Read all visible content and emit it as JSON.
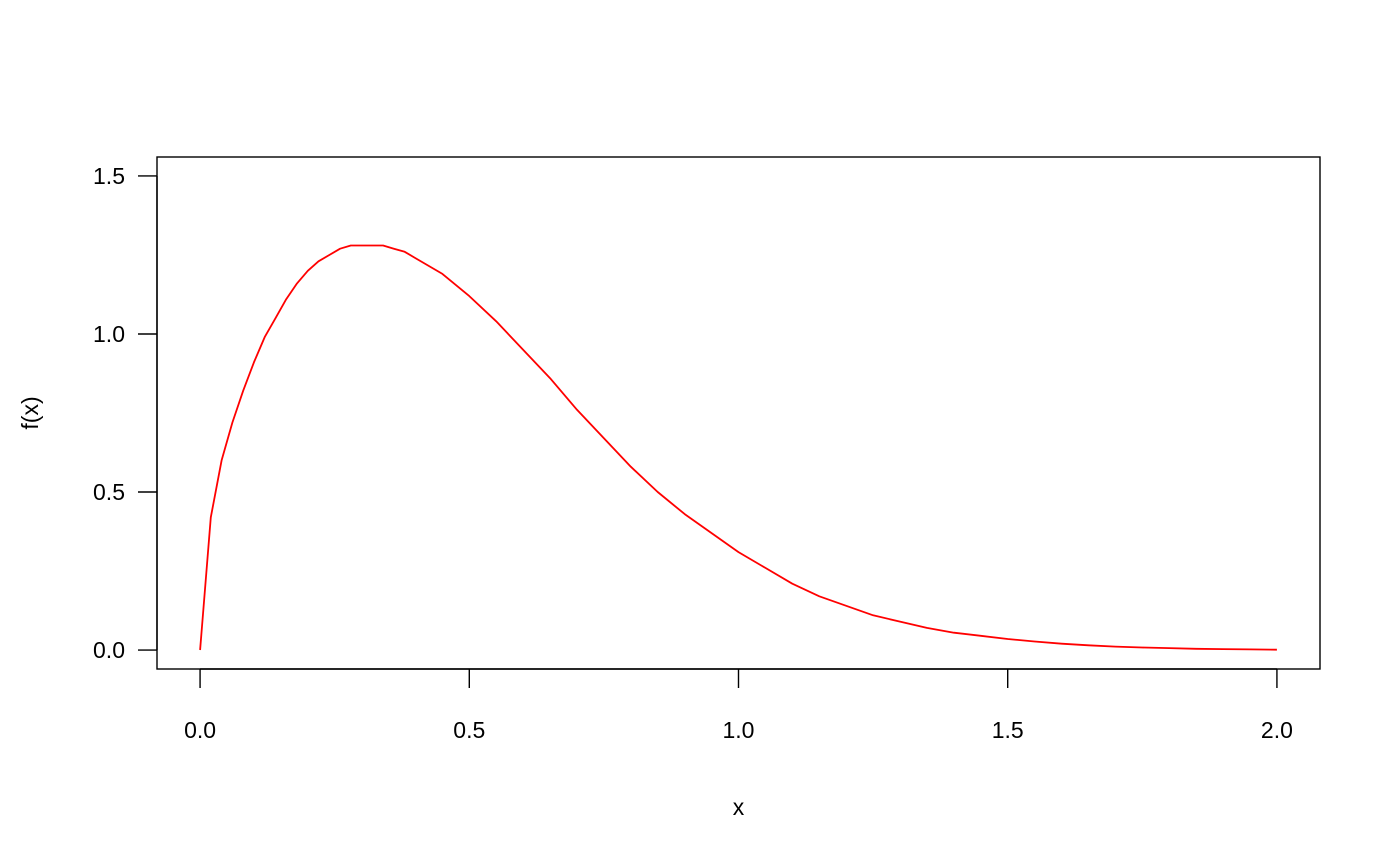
{
  "chart_data": {
    "type": "line",
    "title": "",
    "xlabel": "x",
    "ylabel": "f(x)",
    "xlim": [
      -0.08,
      2.08
    ],
    "ylim": [
      -0.06,
      1.56
    ],
    "xticks": [
      0.0,
      0.5,
      1.0,
      1.5,
      2.0
    ],
    "xtick_labels": [
      "0.0",
      "0.5",
      "1.0",
      "1.5",
      "2.0"
    ],
    "yticks": [
      0.0,
      0.5,
      1.0,
      1.5
    ],
    "ytick_labels": [
      "0.0",
      "0.5",
      "1.0",
      "1.5"
    ],
    "grid": false,
    "legend": "none",
    "series": [
      {
        "color": "#ff0000",
        "x": [
          0.0,
          0.02,
          0.04,
          0.06,
          0.08,
          0.1,
          0.12,
          0.14,
          0.16,
          0.18,
          0.2,
          0.22,
          0.24,
          0.26,
          0.28,
          0.3,
          0.32,
          0.34,
          0.36,
          0.38,
          0.4,
          0.45,
          0.5,
          0.55,
          0.6,
          0.65,
          0.7,
          0.75,
          0.8,
          0.85,
          0.9,
          0.95,
          1.0,
          1.05,
          1.1,
          1.15,
          1.2,
          1.25,
          1.3,
          1.35,
          1.4,
          1.45,
          1.5,
          1.55,
          1.6,
          1.65,
          1.7,
          1.75,
          1.8,
          1.85,
          1.9,
          1.95,
          2.0
        ],
        "y": [
          0.0,
          0.42,
          0.6,
          0.72,
          0.82,
          0.91,
          0.99,
          1.05,
          1.11,
          1.16,
          1.2,
          1.23,
          1.25,
          1.27,
          1.28,
          1.28,
          1.28,
          1.28,
          1.27,
          1.26,
          1.24,
          1.19,
          1.12,
          1.04,
          0.95,
          0.86,
          0.76,
          0.67,
          0.58,
          0.5,
          0.43,
          0.37,
          0.31,
          0.26,
          0.21,
          0.17,
          0.14,
          0.11,
          0.09,
          0.07,
          0.055,
          0.045,
          0.035,
          0.027,
          0.02,
          0.015,
          0.011,
          0.008,
          0.006,
          0.004,
          0.003,
          0.002,
          0.001
        ]
      }
    ]
  }
}
